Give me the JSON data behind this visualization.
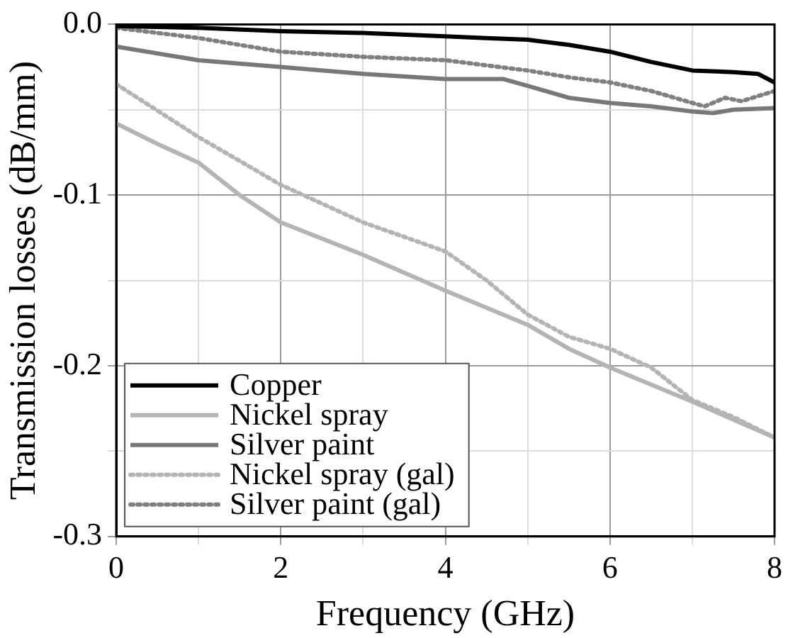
{
  "chart_data": {
    "type": "line",
    "xlabel": "Frequency (GHz)",
    "ylabel": "Transmission losses (dB/mm)",
    "xlim": [
      0,
      8
    ],
    "ylim": [
      -0.3,
      0
    ],
    "xticks": [
      0,
      {
        "value": 1,
        "label": null
      },
      2,
      {
        "value": 3,
        "label": null
      },
      4,
      {
        "value": 5,
        "label": null
      },
      6,
      {
        "value": 7,
        "label": null
      },
      8
    ],
    "yticks": [
      -0.3,
      {
        "value": -0.25,
        "label": null
      },
      -0.2,
      {
        "value": -0.15,
        "label": null
      },
      -0.1,
      {
        "value": -0.05,
        "label": null
      },
      {
        "value": 0,
        "label": "0.0"
      }
    ],
    "grid": true,
    "legend": "bottom left",
    "marker": "none",
    "series": [
      {
        "name": "Copper",
        "color": "#000000",
        "line_style": "solid",
        "x": [
          0,
          1,
          2,
          3,
          4,
          4.5,
          5,
          5.5,
          6,
          6.5,
          7,
          7.5,
          7.8,
          8
        ],
        "values": [
          -0.001,
          -0.002,
          -0.004,
          -0.005,
          -0.007,
          -0.008,
          -0.009,
          -0.012,
          -0.016,
          -0.022,
          -0.027,
          -0.028,
          -0.029,
          -0.034
        ]
      },
      {
        "name": "Nickel spray",
        "color": "#b4b4b4",
        "line_style": "solid",
        "x": [
          0,
          0.5,
          1,
          1.5,
          2,
          3,
          4,
          5,
          5.5,
          6,
          7,
          8
        ],
        "values": [
          -0.058,
          -0.07,
          -0.081,
          -0.1,
          -0.116,
          -0.135,
          -0.156,
          -0.176,
          -0.19,
          -0.201,
          -0.221,
          -0.242
        ]
      },
      {
        "name": "Silver paint",
        "color": "#787878",
        "line_style": "solid",
        "x": [
          0,
          1,
          2,
          3,
          4,
          4.7,
          5,
          5.5,
          6,
          6.5,
          7,
          7.25,
          7.5,
          8
        ],
        "values": [
          -0.013,
          -0.021,
          -0.025,
          -0.029,
          -0.032,
          -0.032,
          -0.036,
          -0.043,
          -0.046,
          -0.048,
          -0.051,
          -0.052,
          -0.05,
          -0.049
        ]
      },
      {
        "name": "Nickel spray (gal)",
        "color": "#b4b4b4",
        "line_style": "dotted",
        "x": [
          0,
          1,
          2,
          2.5,
          3,
          4,
          4.5,
          5,
          5.5,
          6,
          6.5,
          7,
          7.5,
          8
        ],
        "values": [
          -0.035,
          -0.066,
          -0.094,
          -0.105,
          -0.116,
          -0.133,
          -0.15,
          -0.17,
          -0.183,
          -0.19,
          -0.201,
          -0.22,
          -0.23,
          -0.242
        ]
      },
      {
        "name": "Silver paint (gal)",
        "color": "#808080",
        "line_style": "dotted",
        "x": [
          0,
          1,
          2,
          3,
          4,
          5,
          5.5,
          6,
          6.5,
          7,
          7.15,
          7.4,
          7.6,
          8
        ],
        "values": [
          -0.002,
          -0.008,
          -0.016,
          -0.019,
          -0.021,
          -0.027,
          -0.031,
          -0.034,
          -0.039,
          -0.046,
          -0.048,
          -0.043,
          -0.045,
          -0.039
        ]
      }
    ]
  }
}
